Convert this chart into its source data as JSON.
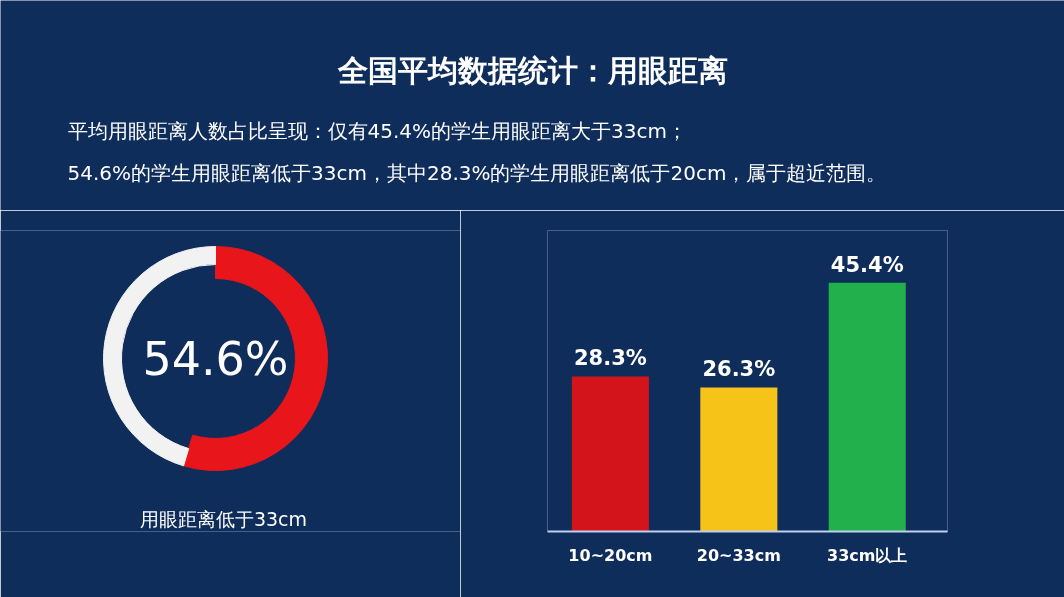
{
  "chart_data": [
    {
      "type": "donut",
      "title": "全国平均数据统计：用眼距离",
      "subtitle": "平均用眼距离人数占比呈现：仅有45.4%的学生用眼距离大于33cm；\n54.6%的学生用眼距离低于33cm，其中28.3%的学生用眼距离低于20cm，属于超近范围。",
      "categories": [
        "用眼距离低于33cm",
        null
      ],
      "values": [
        54.6,
        45.4
      ],
      "colors": [
        "#e8161b",
        "#f2f2f2"
      ],
      "annotations": [
        "54.6%"
      ]
    },
    {
      "type": "bar",
      "categories": [
        "10~20cm",
        "20~33cm",
        "33cm以上"
      ],
      "values": [
        28.3,
        26.3,
        45.4
      ],
      "colors": [
        "#d3141a",
        "#f6c318",
        "#21b04b"
      ],
      "value_labels": [
        "28.3%",
        "26.3%",
        "45.4%"
      ]
    }
  ]
}
